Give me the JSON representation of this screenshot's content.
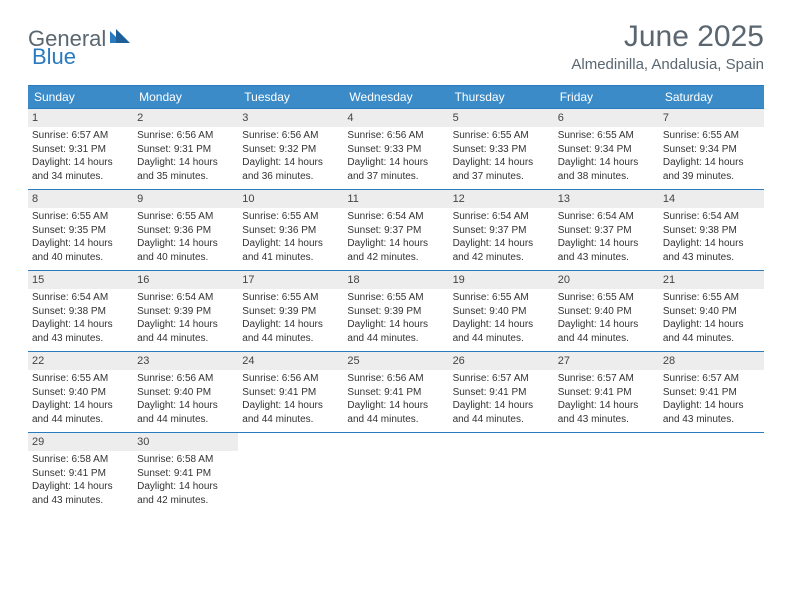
{
  "brand": {
    "part1": "General",
    "part2": "Blue"
  },
  "title": "June 2025",
  "location": "Almedinilla, Andalusia, Spain",
  "colors": {
    "header_bg": "#3b8bc9",
    "border": "#2a7abf",
    "daynum_bg": "#ededed",
    "text": "#333333",
    "muted": "#5a6670"
  },
  "dow": [
    "Sunday",
    "Monday",
    "Tuesday",
    "Wednesday",
    "Thursday",
    "Friday",
    "Saturday"
  ],
  "weeks": [
    [
      {
        "n": "1",
        "sr": "Sunrise: 6:57 AM",
        "ss": "Sunset: 9:31 PM",
        "d1": "Daylight: 14 hours",
        "d2": "and 34 minutes."
      },
      {
        "n": "2",
        "sr": "Sunrise: 6:56 AM",
        "ss": "Sunset: 9:31 PM",
        "d1": "Daylight: 14 hours",
        "d2": "and 35 minutes."
      },
      {
        "n": "3",
        "sr": "Sunrise: 6:56 AM",
        "ss": "Sunset: 9:32 PM",
        "d1": "Daylight: 14 hours",
        "d2": "and 36 minutes."
      },
      {
        "n": "4",
        "sr": "Sunrise: 6:56 AM",
        "ss": "Sunset: 9:33 PM",
        "d1": "Daylight: 14 hours",
        "d2": "and 37 minutes."
      },
      {
        "n": "5",
        "sr": "Sunrise: 6:55 AM",
        "ss": "Sunset: 9:33 PM",
        "d1": "Daylight: 14 hours",
        "d2": "and 37 minutes."
      },
      {
        "n": "6",
        "sr": "Sunrise: 6:55 AM",
        "ss": "Sunset: 9:34 PM",
        "d1": "Daylight: 14 hours",
        "d2": "and 38 minutes."
      },
      {
        "n": "7",
        "sr": "Sunrise: 6:55 AM",
        "ss": "Sunset: 9:34 PM",
        "d1": "Daylight: 14 hours",
        "d2": "and 39 minutes."
      }
    ],
    [
      {
        "n": "8",
        "sr": "Sunrise: 6:55 AM",
        "ss": "Sunset: 9:35 PM",
        "d1": "Daylight: 14 hours",
        "d2": "and 40 minutes."
      },
      {
        "n": "9",
        "sr": "Sunrise: 6:55 AM",
        "ss": "Sunset: 9:36 PM",
        "d1": "Daylight: 14 hours",
        "d2": "and 40 minutes."
      },
      {
        "n": "10",
        "sr": "Sunrise: 6:55 AM",
        "ss": "Sunset: 9:36 PM",
        "d1": "Daylight: 14 hours",
        "d2": "and 41 minutes."
      },
      {
        "n": "11",
        "sr": "Sunrise: 6:54 AM",
        "ss": "Sunset: 9:37 PM",
        "d1": "Daylight: 14 hours",
        "d2": "and 42 minutes."
      },
      {
        "n": "12",
        "sr": "Sunrise: 6:54 AM",
        "ss": "Sunset: 9:37 PM",
        "d1": "Daylight: 14 hours",
        "d2": "and 42 minutes."
      },
      {
        "n": "13",
        "sr": "Sunrise: 6:54 AM",
        "ss": "Sunset: 9:37 PM",
        "d1": "Daylight: 14 hours",
        "d2": "and 43 minutes."
      },
      {
        "n": "14",
        "sr": "Sunrise: 6:54 AM",
        "ss": "Sunset: 9:38 PM",
        "d1": "Daylight: 14 hours",
        "d2": "and 43 minutes."
      }
    ],
    [
      {
        "n": "15",
        "sr": "Sunrise: 6:54 AM",
        "ss": "Sunset: 9:38 PM",
        "d1": "Daylight: 14 hours",
        "d2": "and 43 minutes."
      },
      {
        "n": "16",
        "sr": "Sunrise: 6:54 AM",
        "ss": "Sunset: 9:39 PM",
        "d1": "Daylight: 14 hours",
        "d2": "and 44 minutes."
      },
      {
        "n": "17",
        "sr": "Sunrise: 6:55 AM",
        "ss": "Sunset: 9:39 PM",
        "d1": "Daylight: 14 hours",
        "d2": "and 44 minutes."
      },
      {
        "n": "18",
        "sr": "Sunrise: 6:55 AM",
        "ss": "Sunset: 9:39 PM",
        "d1": "Daylight: 14 hours",
        "d2": "and 44 minutes."
      },
      {
        "n": "19",
        "sr": "Sunrise: 6:55 AM",
        "ss": "Sunset: 9:40 PM",
        "d1": "Daylight: 14 hours",
        "d2": "and 44 minutes."
      },
      {
        "n": "20",
        "sr": "Sunrise: 6:55 AM",
        "ss": "Sunset: 9:40 PM",
        "d1": "Daylight: 14 hours",
        "d2": "and 44 minutes."
      },
      {
        "n": "21",
        "sr": "Sunrise: 6:55 AM",
        "ss": "Sunset: 9:40 PM",
        "d1": "Daylight: 14 hours",
        "d2": "and 44 minutes."
      }
    ],
    [
      {
        "n": "22",
        "sr": "Sunrise: 6:55 AM",
        "ss": "Sunset: 9:40 PM",
        "d1": "Daylight: 14 hours",
        "d2": "and 44 minutes."
      },
      {
        "n": "23",
        "sr": "Sunrise: 6:56 AM",
        "ss": "Sunset: 9:40 PM",
        "d1": "Daylight: 14 hours",
        "d2": "and 44 minutes."
      },
      {
        "n": "24",
        "sr": "Sunrise: 6:56 AM",
        "ss": "Sunset: 9:41 PM",
        "d1": "Daylight: 14 hours",
        "d2": "and 44 minutes."
      },
      {
        "n": "25",
        "sr": "Sunrise: 6:56 AM",
        "ss": "Sunset: 9:41 PM",
        "d1": "Daylight: 14 hours",
        "d2": "and 44 minutes."
      },
      {
        "n": "26",
        "sr": "Sunrise: 6:57 AM",
        "ss": "Sunset: 9:41 PM",
        "d1": "Daylight: 14 hours",
        "d2": "and 44 minutes."
      },
      {
        "n": "27",
        "sr": "Sunrise: 6:57 AM",
        "ss": "Sunset: 9:41 PM",
        "d1": "Daylight: 14 hours",
        "d2": "and 43 minutes."
      },
      {
        "n": "28",
        "sr": "Sunrise: 6:57 AM",
        "ss": "Sunset: 9:41 PM",
        "d1": "Daylight: 14 hours",
        "d2": "and 43 minutes."
      }
    ],
    [
      {
        "n": "29",
        "sr": "Sunrise: 6:58 AM",
        "ss": "Sunset: 9:41 PM",
        "d1": "Daylight: 14 hours",
        "d2": "and 43 minutes."
      },
      {
        "n": "30",
        "sr": "Sunrise: 6:58 AM",
        "ss": "Sunset: 9:41 PM",
        "d1": "Daylight: 14 hours",
        "d2": "and 42 minutes."
      },
      null,
      null,
      null,
      null,
      null
    ]
  ]
}
